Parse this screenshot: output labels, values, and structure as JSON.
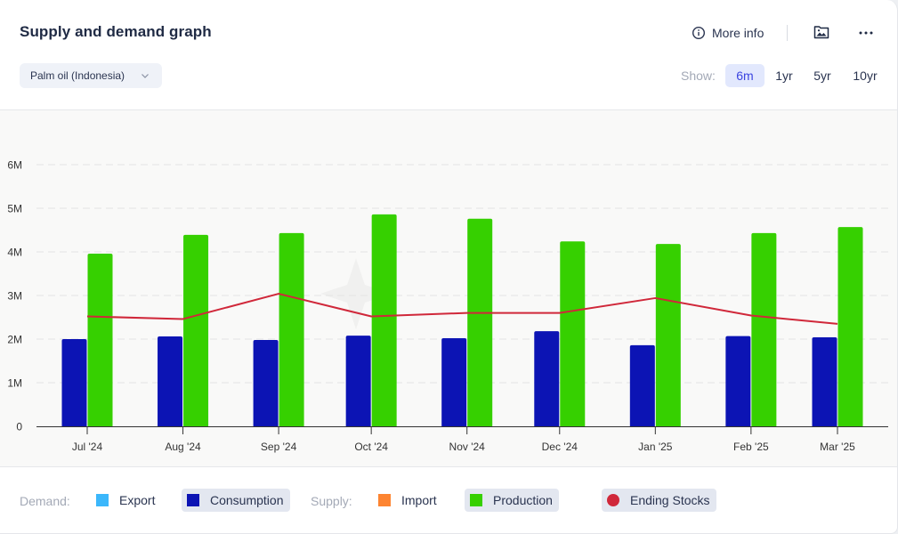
{
  "header": {
    "title": "Supply and demand graph",
    "commodity_select": {
      "value": "Palm oil (Indonesia)",
      "icon": "chevron-down-icon"
    },
    "more_info_label": "More info",
    "more_info_icon": "info-circle-icon",
    "download_image_icon": "image-icon",
    "menu_icon": "more-horizontal-icon",
    "show_label": "Show:",
    "ranges": [
      {
        "label": "6m",
        "active": true
      },
      {
        "label": "1yr",
        "active": false
      },
      {
        "label": "5yr",
        "active": false
      },
      {
        "label": "10yr",
        "active": false
      }
    ]
  },
  "legend": {
    "demand_label": "Demand:",
    "supply_label": "Supply:",
    "items": [
      {
        "label": "Export",
        "color": "#3BB7FB",
        "shape": "square",
        "active": false
      },
      {
        "label": "Consumption",
        "color": "#0C14B4",
        "shape": "square",
        "active": true
      },
      {
        "label": "Import",
        "color": "#FD8431",
        "shape": "square",
        "active": false
      },
      {
        "label": "Production",
        "color": "#36D000",
        "shape": "square",
        "active": true
      },
      {
        "label": "Ending Stocks",
        "color": "#D0283A",
        "shape": "circle",
        "active": true
      }
    ]
  },
  "chart_data": {
    "type": "bar",
    "title": "Supply and demand graph",
    "xlabel": "",
    "ylabel": "",
    "ylim": [
      0,
      6000000
    ],
    "yticks": [
      0,
      1000000,
      2000000,
      3000000,
      4000000,
      5000000,
      6000000
    ],
    "ytick_labels": [
      "0",
      "1M",
      "2M",
      "3M",
      "4M",
      "5M",
      "6M"
    ],
    "grid": true,
    "categories": [
      "Jul '24",
      "Aug '24",
      "Sep '24",
      "Oct '24",
      "Nov '24",
      "Dec '24",
      "Jan '25",
      "Feb '25",
      "Mar '25"
    ],
    "dates": [
      "2024-07-01",
      "2024-08-01",
      "2024-09-01",
      "2024-10-01",
      "2024-11-01",
      "2024-12-01",
      "2025-01-01",
      "2025-02-01",
      "2025-03-01"
    ],
    "series": [
      {
        "name": "Consumption",
        "type": "bar",
        "color": "#0C14B4",
        "values": [
          2000000,
          2060000,
          1980000,
          2080000,
          2020000,
          2180000,
          1860000,
          2070000,
          2040000
        ]
      },
      {
        "name": "Production",
        "type": "bar",
        "color": "#36D000",
        "values": [
          3960000,
          4390000,
          4430000,
          4860000,
          4760000,
          4240000,
          4180000,
          4430000,
          4570000
        ]
      },
      {
        "name": "Ending Stocks",
        "type": "line",
        "color": "#D0283A",
        "values": [
          2520000,
          2460000,
          3040000,
          2520000,
          2600000,
          2600000,
          2940000,
          2540000,
          2350000
        ]
      }
    ],
    "legend_position": "bottom"
  }
}
